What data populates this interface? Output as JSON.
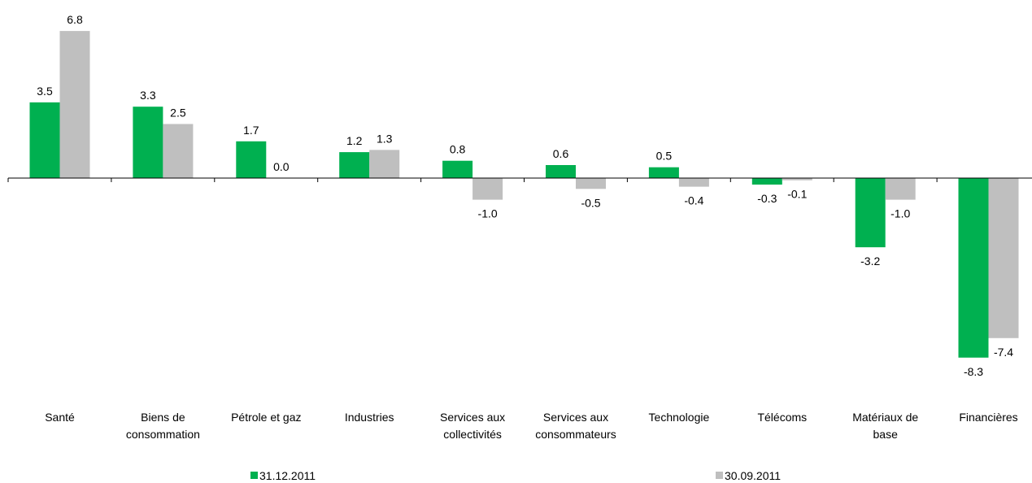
{
  "chart_data": {
    "type": "bar",
    "categories": [
      "Santé",
      "Biens de consommation",
      "Pétrole et gaz",
      "Industries",
      "Services aux collectivités",
      "Services aux consommateurs",
      "Technologie",
      "Télécoms",
      "Matériaux de base",
      "Financières"
    ],
    "category_lines": [
      [
        "Santé"
      ],
      [
        "Biens de",
        "consommation"
      ],
      [
        "Pétrole et gaz"
      ],
      [
        "Industries"
      ],
      [
        "Services aux",
        "collectivités"
      ],
      [
        "Services aux",
        "consommateurs"
      ],
      [
        "Technologie"
      ],
      [
        "Télécoms"
      ],
      [
        "Matériaux de",
        "base"
      ],
      [
        "Financières"
      ]
    ],
    "series": [
      {
        "name": "31.12.2011",
        "color": "#00b050",
        "values": [
          3.5,
          3.3,
          1.7,
          1.2,
          0.8,
          0.6,
          0.5,
          -0.3,
          -3.2,
          -8.3
        ],
        "labels": [
          "3.5",
          "3.3",
          "1.7",
          "1.2",
          "0.8",
          "0.6",
          "0.5",
          "-0.3",
          "-3.2",
          "-8.3"
        ]
      },
      {
        "name": "30.09.2011",
        "color": "#bfbfbf",
        "values": [
          6.8,
          2.5,
          0.0,
          1.3,
          -1.0,
          -0.5,
          -0.4,
          -0.1,
          -1.0,
          -7.4
        ],
        "labels": [
          "6.8",
          "2.5",
          "0.0",
          "1.3",
          "-1.0",
          "-0.5",
          "-0.4",
          "-0.1",
          "-1.0",
          "-7.4"
        ]
      }
    ],
    "ylim": [
      -8.3,
      6.8
    ],
    "title": "",
    "xlabel": "",
    "ylabel": "",
    "grid": false,
    "legend_position": "bottom"
  }
}
